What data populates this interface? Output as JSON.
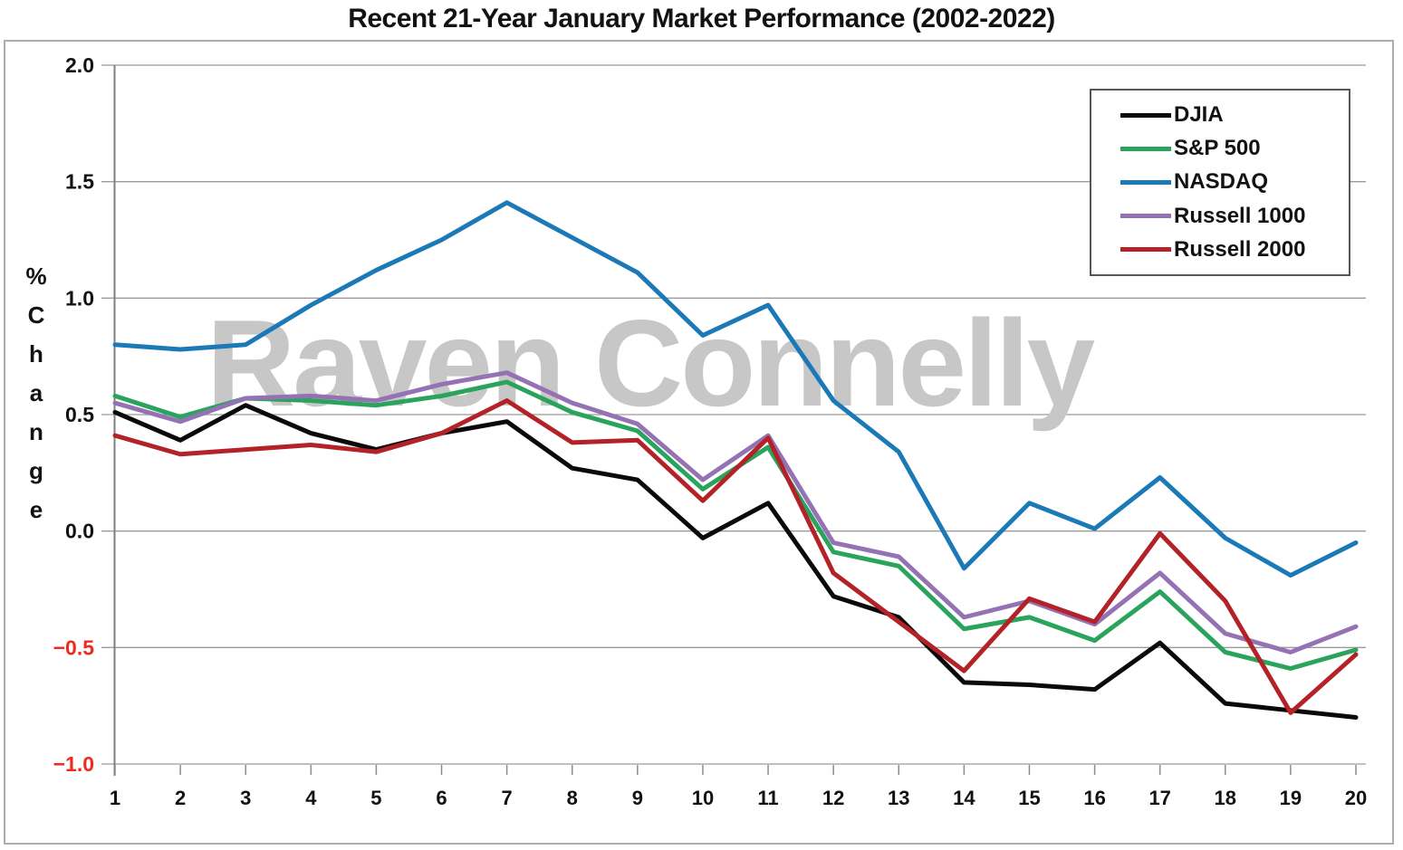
{
  "title": "Recent 21-Year January Market Performance (2002-2022)",
  "watermark": "Raven Connelly",
  "chart_data": {
    "type": "line",
    "title": "Recent 21-Year January Market Performance (2002-2022)",
    "xlabel": "",
    "ylabel": "% Change",
    "ylim": [
      -1.0,
      2.0
    ],
    "yticks": [
      2.0,
      1.5,
      1.0,
      0.5,
      0.0,
      -0.5,
      -1.0
    ],
    "grid": true,
    "legend_position": "top-right",
    "negative_tick_color": "#ee2a21",
    "gridline_color": "#9b9b9b",
    "axis_color": "#7f7f7f",
    "categories": [
      1,
      2,
      3,
      4,
      5,
      6,
      7,
      8,
      9,
      10,
      11,
      12,
      13,
      14,
      15,
      16,
      17,
      18,
      19,
      20
    ],
    "series": [
      {
        "name": "DJIA",
        "color": "#0a0a0a",
        "values": [
          0.51,
          0.39,
          0.54,
          0.42,
          0.35,
          0.42,
          0.47,
          0.27,
          0.22,
          -0.03,
          0.12,
          -0.28,
          -0.37,
          -0.65,
          -0.66,
          -0.68,
          -0.48,
          -0.74,
          -0.77,
          -0.8
        ]
      },
      {
        "name": "S&P 500",
        "color": "#2aa45c",
        "values": [
          0.58,
          0.49,
          0.57,
          0.56,
          0.54,
          0.58,
          0.64,
          0.51,
          0.43,
          0.18,
          0.36,
          -0.09,
          -0.15,
          -0.42,
          -0.37,
          -0.47,
          -0.26,
          -0.52,
          -0.59,
          -0.51
        ]
      },
      {
        "name": "NASDAQ",
        "color": "#1b79b7",
        "values": [
          0.8,
          0.78,
          0.8,
          0.97,
          1.12,
          1.25,
          1.41,
          1.26,
          1.11,
          0.84,
          0.97,
          0.56,
          0.34,
          -0.16,
          0.12,
          0.01,
          0.23,
          -0.03,
          -0.19,
          -0.05
        ]
      },
      {
        "name": "Russell 1000",
        "color": "#9472b4",
        "values": [
          0.55,
          0.47,
          0.57,
          0.58,
          0.56,
          0.63,
          0.68,
          0.55,
          0.46,
          0.22,
          0.41,
          -0.05,
          -0.11,
          -0.37,
          -0.3,
          -0.4,
          -0.18,
          -0.44,
          -0.52,
          -0.41
        ]
      },
      {
        "name": "Russell 2000",
        "color": "#b22227",
        "values": [
          0.41,
          0.33,
          0.35,
          0.37,
          0.34,
          0.42,
          0.56,
          0.38,
          0.39,
          0.13,
          0.4,
          -0.18,
          -0.39,
          -0.6,
          -0.29,
          -0.39,
          -0.01,
          -0.3,
          -0.78,
          -0.53
        ]
      }
    ]
  }
}
